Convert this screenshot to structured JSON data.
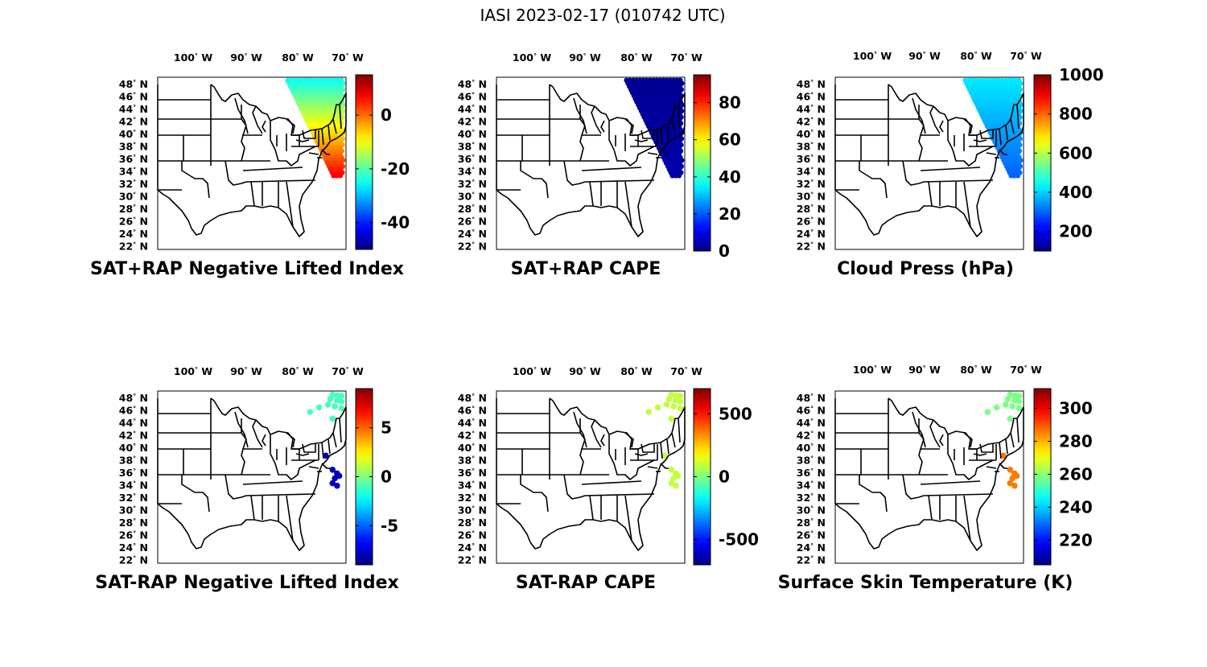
{
  "figure_title": "IASI 2023-02-17 (010742 UTC)",
  "lon_labels": [
    "100",
    "90",
    "80",
    "70"
  ],
  "lon_hemisphere": "W",
  "lat_labels": [
    "48",
    "46",
    "44",
    "42",
    "40",
    "38",
    "36",
    "34",
    "32",
    "30",
    "28",
    "26",
    "24",
    "22"
  ],
  "lat_hemisphere": "N",
  "degree_symbol": "°",
  "colormap": "jet",
  "panels": [
    {
      "title": "SAT+RAP Negative Lifted Index",
      "colorbar": {
        "min": -50,
        "max": 15,
        "ticks": [
          "0",
          "-20",
          "-40"
        ],
        "tick_values": [
          0,
          -20,
          -40
        ]
      },
      "data_summary": {
        "swath": "full",
        "north_value": -25,
        "south_value": 7
      }
    },
    {
      "title": "SAT+RAP CAPE",
      "colorbar": {
        "min": 0,
        "max": 95,
        "ticks": [
          "80",
          "60",
          "40",
          "20",
          "0"
        ],
        "tick_values": [
          80,
          60,
          40,
          20,
          0
        ]
      },
      "data_summary": {
        "swath": "full",
        "north_value": 2,
        "south_value": 4
      }
    },
    {
      "title": "Cloud Press (hPa)",
      "colorbar": {
        "min": 100,
        "max": 1000,
        "ticks": [
          "1000",
          "800",
          "600",
          "400",
          "200"
        ],
        "tick_values": [
          1000,
          800,
          600,
          400,
          200
        ]
      },
      "data_summary": {
        "swath": "full",
        "north_value": 420,
        "south_value": 300
      }
    },
    {
      "title": "SAT-RAP Negative Lifted Index",
      "colorbar": {
        "min": -9,
        "max": 9,
        "ticks": [
          "5",
          "0",
          "-5"
        ],
        "tick_values": [
          5,
          0,
          -5
        ]
      },
      "data_summary": {
        "swath": "sparse",
        "north_value": -1,
        "south_value": -8
      }
    },
    {
      "title": "SAT-RAP CAPE",
      "colorbar": {
        "min": -700,
        "max": 700,
        "ticks": [
          "500",
          "0",
          "-500"
        ],
        "tick_values": [
          500,
          0,
          -500
        ]
      },
      "data_summary": {
        "swath": "sparse",
        "north_value": 90,
        "south_value": 90
      }
    },
    {
      "title": "Surface Skin Temperature (K)",
      "colorbar": {
        "min": 205,
        "max": 312,
        "ticks": [
          "300",
          "280",
          "260",
          "240",
          "220"
        ],
        "tick_values": [
          300,
          280,
          260,
          240,
          220
        ]
      },
      "data_summary": {
        "swath": "sparse",
        "north_value": 258,
        "south_value": 286
      }
    }
  ]
}
